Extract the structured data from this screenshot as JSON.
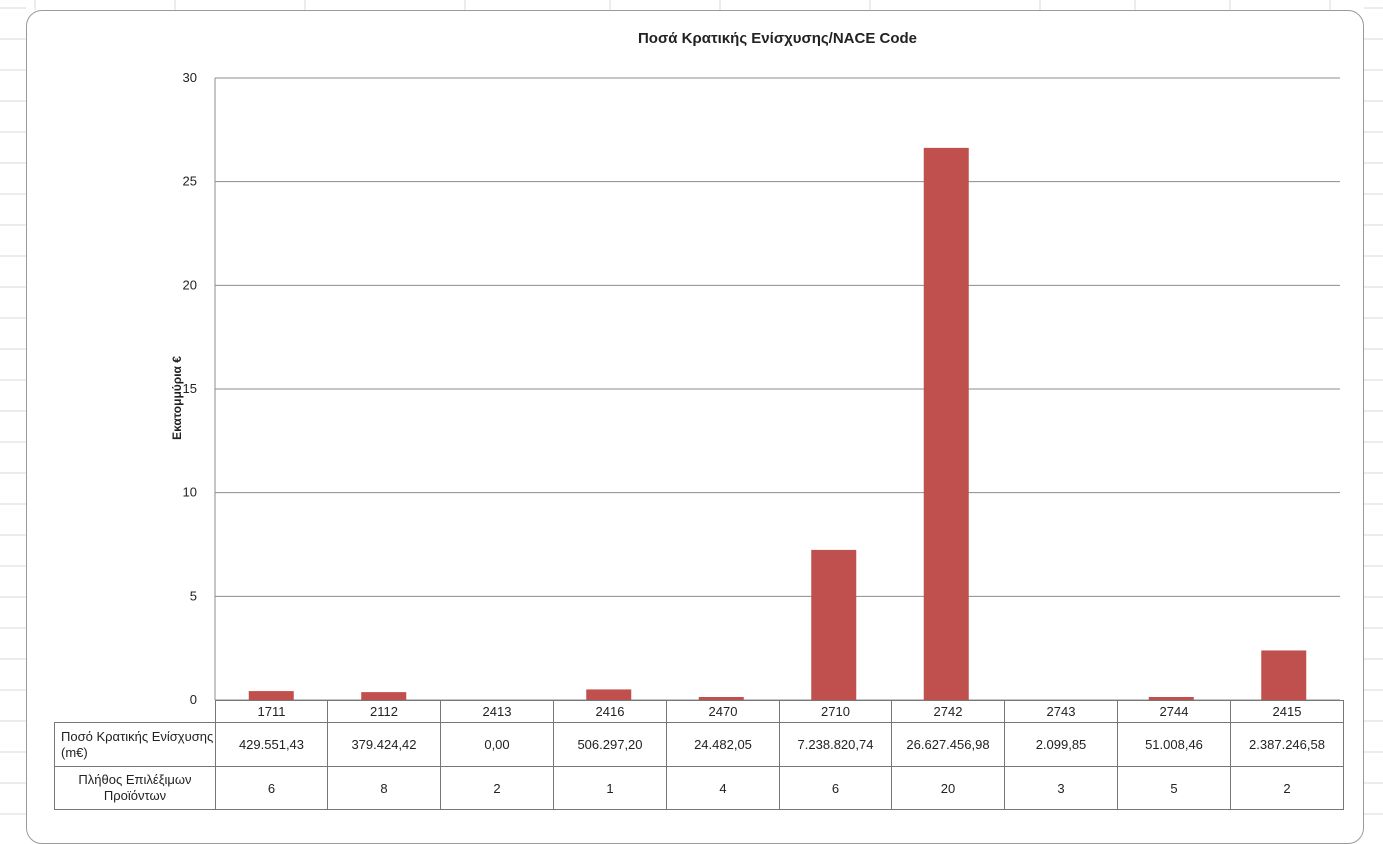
{
  "chart_data": {
    "type": "bar",
    "title": "Ποσά Κρατικής Ενίσχυσης/NACE Code",
    "ylabel": "Εκατομμύρια €",
    "xlabel": "",
    "ylim": [
      0,
      30
    ],
    "yticks": [
      "0",
      "5",
      "10",
      "15",
      "20",
      "25",
      "30"
    ],
    "grid": true,
    "categories": [
      "1711",
      "2112",
      "2413",
      "2416",
      "2470",
      "2710",
      "2742",
      "2743",
      "2744",
      "2415"
    ],
    "values": [
      0.43,
      0.38,
      0.0,
      0.51,
      0.02,
      7.24,
      26.63,
      0.0,
      0.05,
      2.39
    ],
    "color": "#c0504d"
  },
  "table": {
    "rows": [
      {
        "label": "Ποσό Κρατικής Ενίσχυσης (m€)",
        "cells": [
          "429.551,43",
          "379.424,42",
          "0,00",
          "506.297,20",
          "24.482,05",
          "7.238.820,74",
          "26.627.456,98",
          "2.099,85",
          "51.008,46",
          "2.387.246,58"
        ]
      },
      {
        "label": "Πλήθος Επιλέξιμων Προϊόντων",
        "cells": [
          "6",
          "8",
          "2",
          "1",
          "4",
          "6",
          "20",
          "3",
          "5",
          "2"
        ]
      }
    ]
  }
}
